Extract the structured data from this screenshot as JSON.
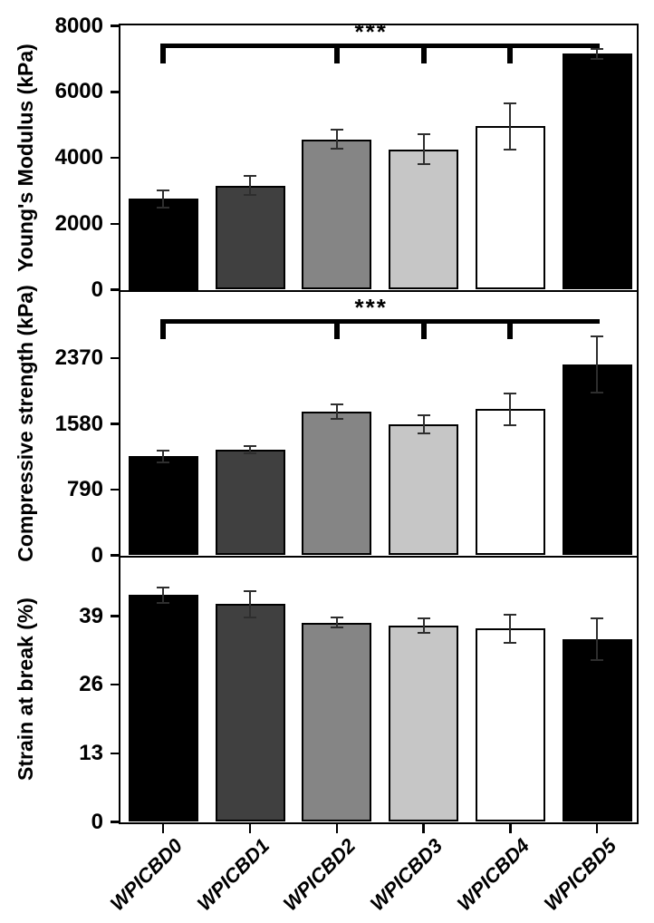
{
  "figure": {
    "categories": [
      "WPICBD0",
      "WPICBD1",
      "WPICBD2",
      "WPICBD3",
      "WPICBD4",
      "WPICBD5"
    ],
    "background_color": "#ffffff",
    "frame_color": "#000000",
    "bar_fill_colors": [
      "#000000",
      "#404040",
      "#858585",
      "#c6c6c6",
      "#ffffff",
      "#000000"
    ],
    "bar_border_color": "#000000",
    "error_bar_color": "#2e2e2e",
    "significance_color": "#000000"
  },
  "chart_data": [
    {
      "type": "bar",
      "panel": "youngs-modulus",
      "ylabel": "Young's Modulus (kPa)",
      "xlabel": "",
      "categories": [
        "WPICBD0",
        "WPICBD1",
        "WPICBD2",
        "WPICBD3",
        "WPICBD4",
        "WPICBD5"
      ],
      "values": [
        2750,
        3160,
        4560,
        4260,
        4950,
        7160
      ],
      "errors": [
        250,
        300,
        290,
        450,
        700,
        150
      ],
      "yticks": [
        0,
        2000,
        4000,
        6000,
        8000
      ],
      "ylim": [
        0,
        8000
      ],
      "grid": false,
      "legend": false,
      "significance": {
        "label": "***",
        "from": 0,
        "to": 5,
        "group_ticks": [
          0,
          2,
          3,
          4
        ]
      }
    },
    {
      "type": "bar",
      "panel": "compressive-strength",
      "ylabel": "Compressive strength (kPa)",
      "xlabel": "",
      "categories": [
        "WPICBD0",
        "WPICBD1",
        "WPICBD2",
        "WPICBD3",
        "WPICBD4",
        "WPICBD5"
      ],
      "values": [
        1190,
        1270,
        1725,
        1575,
        1755,
        2295
      ],
      "errors": [
        70,
        40,
        85,
        110,
        190,
        335
      ],
      "yticks": [
        0,
        790,
        1580,
        2370
      ],
      "ylim": [
        0,
        3160
      ],
      "grid": false,
      "legend": false,
      "significance": {
        "label": "***",
        "from": 0,
        "to": 5,
        "group_ticks": [
          0,
          2,
          3,
          4
        ]
      }
    },
    {
      "type": "bar",
      "panel": "strain-at-break",
      "ylabel": "Strain at break (%)",
      "xlabel": "",
      "categories": [
        "WPICBD0",
        "WPICBD1",
        "WPICBD2",
        "WPICBD3",
        "WPICBD4",
        "WPICBD5"
      ],
      "values": [
        43.0,
        41.3,
        37.8,
        37.2,
        36.6,
        34.6
      ],
      "errors": [
        1.5,
        2.5,
        1.0,
        1.3,
        2.6,
        4.0
      ],
      "yticks": [
        0,
        13,
        26,
        39
      ],
      "ylim": [
        0,
        50
      ],
      "grid": false,
      "legend": false,
      "significance": null
    }
  ]
}
